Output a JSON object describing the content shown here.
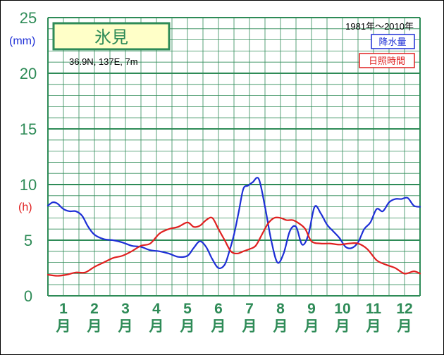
{
  "chart_data": {
    "type": "line",
    "title": "氷見",
    "location": "36.9N,  137E,  7m",
    "period": "1981年〜2010年",
    "y_ticks": [
      "0",
      "5",
      "10",
      "15",
      "20",
      "25"
    ],
    "ylim": [
      0,
      25
    ],
    "y_units": {
      "precip": "(mm)",
      "sun": "(h)"
    },
    "months": [
      {
        "num": "1",
        "suffix": "月"
      },
      {
        "num": "2",
        "suffix": "月"
      },
      {
        "num": "3",
        "suffix": "月"
      },
      {
        "num": "4",
        "suffix": "月"
      },
      {
        "num": "5",
        "suffix": "月"
      },
      {
        "num": "6",
        "suffix": "月"
      },
      {
        "num": "7",
        "suffix": "月"
      },
      {
        "num": "8",
        "suffix": "月"
      },
      {
        "num": "9",
        "suffix": "月"
      },
      {
        "num": "10",
        "suffix": "月"
      },
      {
        "num": "11",
        "suffix": "月"
      },
      {
        "num": "12",
        "suffix": "月"
      }
    ],
    "x_range": [
      0.5,
      12.5
    ],
    "grid": true,
    "series": [
      {
        "name": "降水量",
        "color": "#1e2fd6",
        "x": [
          0.5,
          0.65,
          0.8,
          1.0,
          1.2,
          1.4,
          1.6,
          1.8,
          2.0,
          2.3,
          2.6,
          2.9,
          3.2,
          3.5,
          3.8,
          4.1,
          4.4,
          4.7,
          5.0,
          5.2,
          5.4,
          5.6,
          5.8,
          6.0,
          6.2,
          6.35,
          6.5,
          6.65,
          6.8,
          6.95,
          7.1,
          7.3,
          7.5,
          7.7,
          7.9,
          8.1,
          8.3,
          8.5,
          8.7,
          8.9,
          9.1,
          9.3,
          9.5,
          9.7,
          9.9,
          10.1,
          10.3,
          10.5,
          10.7,
          10.9,
          11.1,
          11.3,
          11.5,
          11.7,
          11.9,
          12.1,
          12.3,
          12.5
        ],
        "y": [
          8.1,
          8.4,
          8.3,
          7.8,
          7.6,
          7.6,
          7.2,
          6.2,
          5.5,
          5.1,
          5.0,
          4.8,
          4.5,
          4.4,
          4.1,
          4.0,
          3.8,
          3.5,
          3.6,
          4.3,
          4.9,
          4.4,
          3.3,
          2.5,
          2.8,
          4.0,
          5.5,
          7.5,
          9.6,
          9.9,
          10.2,
          10.5,
          8.0,
          5.0,
          3.0,
          3.8,
          5.8,
          6.2,
          4.6,
          5.5,
          8.0,
          7.4,
          6.4,
          5.8,
          5.2,
          4.4,
          4.3,
          4.8,
          6.0,
          6.6,
          7.8,
          7.6,
          8.4,
          8.7,
          8.7,
          8.8,
          8.1,
          8.0
        ]
      },
      {
        "name": "日照時間",
        "color": "#e02020",
        "x": [
          0.5,
          0.8,
          1.1,
          1.4,
          1.7,
          2.0,
          2.3,
          2.6,
          2.9,
          3.2,
          3.5,
          3.8,
          4.1,
          4.4,
          4.7,
          5.0,
          5.2,
          5.4,
          5.6,
          5.8,
          6.0,
          6.2,
          6.4,
          6.6,
          6.8,
          7.0,
          7.2,
          7.4,
          7.6,
          7.8,
          8.0,
          8.2,
          8.4,
          8.6,
          8.8,
          9.0,
          9.3,
          9.6,
          9.9,
          10.2,
          10.5,
          10.8,
          11.1,
          11.4,
          11.7,
          12.0,
          12.3,
          12.5
        ],
        "y": [
          1.9,
          1.8,
          1.9,
          2.1,
          2.1,
          2.6,
          3.0,
          3.4,
          3.6,
          4.0,
          4.5,
          4.7,
          5.6,
          6.0,
          6.2,
          6.6,
          6.2,
          6.3,
          6.8,
          7.0,
          6.0,
          5.0,
          4.0,
          3.8,
          4.0,
          4.2,
          4.5,
          5.5,
          6.5,
          7.0,
          7.0,
          6.8,
          6.8,
          6.5,
          6.0,
          4.9,
          4.7,
          4.7,
          4.6,
          4.7,
          4.7,
          4.2,
          3.2,
          2.8,
          2.5,
          2.0,
          2.2,
          2.0
        ]
      }
    ]
  }
}
